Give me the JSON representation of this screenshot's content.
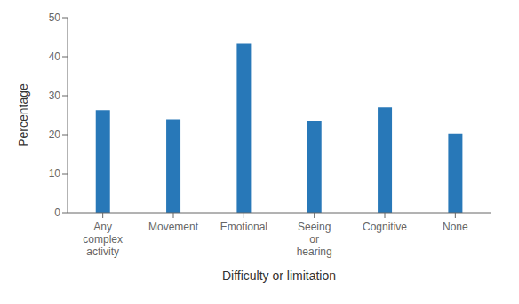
{
  "chart_data": {
    "type": "bar",
    "xlabel": "Difficulty or limitation",
    "ylabel": "Percentage",
    "categories": [
      "Any\ncomplex\nactivity",
      "Movement",
      "Emotional",
      "Seeing\nor\nhearing",
      "Cognitive",
      "None"
    ],
    "values": [
      26.3,
      24.0,
      43.3,
      23.5,
      27.0,
      20.3
    ],
    "color": "#2878B8",
    "ylim": [
      0,
      50
    ],
    "yticks": [
      0,
      10,
      20,
      30,
      40,
      50
    ],
    "grid": false
  }
}
